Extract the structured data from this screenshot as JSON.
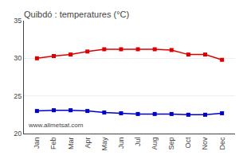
{
  "chart_data": {
    "type": "line",
    "title": "Quibdó : temperatures (°C)",
    "categories": [
      "Jan",
      "Feb",
      "Mar",
      "Apr",
      "May",
      "Jun",
      "Jul",
      "Aug",
      "Sep",
      "Oct",
      "Nov",
      "Dec"
    ],
    "series": [
      {
        "color": "#dd0000",
        "marker": "square",
        "line_style": "solid",
        "values": [
          30.0,
          30.3,
          30.5,
          30.9,
          31.2,
          31.2,
          31.2,
          31.2,
          31.1,
          30.5,
          30.5,
          29.8
        ]
      },
      {
        "color": "#0000cc",
        "marker": "square",
        "line_style": "solid",
        "values": [
          23.0,
          23.1,
          23.1,
          23.0,
          22.8,
          22.7,
          22.6,
          22.6,
          22.6,
          22.5,
          22.5,
          22.7
        ]
      }
    ],
    "ylim": [
      20,
      35
    ],
    "yticks": [
      20,
      25,
      30,
      35
    ],
    "grid": true,
    "annotations": [
      "www.allmetsat.com"
    ]
  }
}
